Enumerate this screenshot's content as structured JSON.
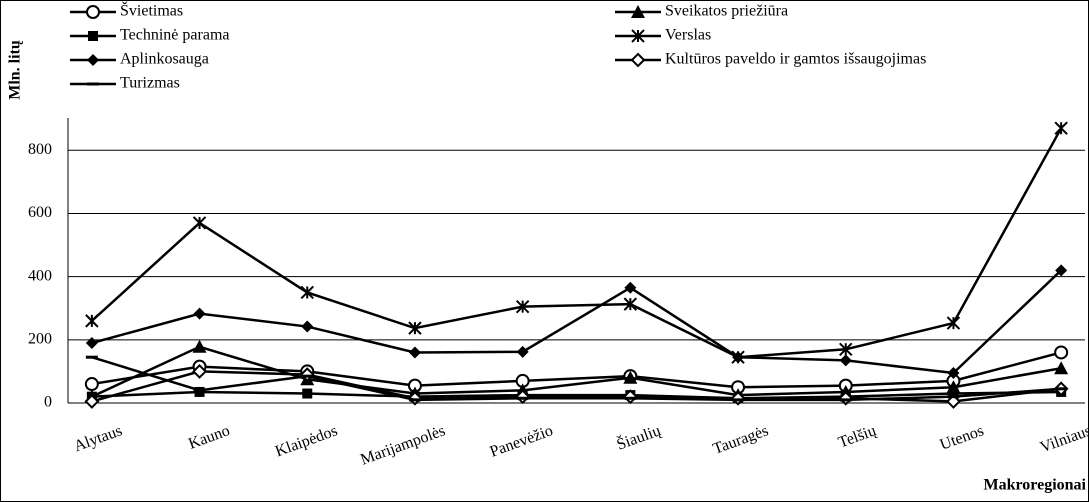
{
  "chart_data": {
    "type": "line",
    "y_label": "Mln. litų",
    "x_label": "Makroregionai",
    "categories": [
      "Alytaus",
      "Kauno",
      "Klaipėdos",
      "Marijampolės",
      "Panevėžio",
      "Šiaulių",
      "Tauragės",
      "Telšių",
      "Utenos",
      "Vilniaus"
    ],
    "series": [
      {
        "name": "Švietimas",
        "color": "#000000",
        "marker": "circle-open",
        "values": [
          60,
          115,
          100,
          55,
          70,
          85,
          50,
          55,
          70,
          160
        ]
      },
      {
        "name": "Sveikatos priežiūra",
        "color": "#000000",
        "marker": "triangle",
        "values": [
          20,
          178,
          75,
          30,
          40,
          80,
          25,
          35,
          50,
          110
        ]
      },
      {
        "name": "Techninė parama",
        "color": "#000000",
        "marker": "square",
        "values": [
          20,
          35,
          30,
          20,
          25,
          25,
          15,
          20,
          30,
          35
        ]
      },
      {
        "name": "Verslas",
        "color": "#000000",
        "marker": "asterisk",
        "values": [
          260,
          570,
          350,
          237,
          305,
          313,
          145,
          170,
          253,
          870
        ]
      },
      {
        "name": "Aplinkosauga",
        "color": "#000000",
        "marker": "diamond",
        "values": [
          190,
          283,
          242,
          160,
          162,
          365,
          145,
          135,
          95,
          420
        ]
      },
      {
        "name": "Kultūros paveldo ir gamtos išsaugojimas",
        "color": "#000000",
        "marker": "diamond-open",
        "values": [
          5,
          100,
          90,
          15,
          20,
          20,
          15,
          15,
          5,
          45
        ]
      },
      {
        "name": "Turizmas",
        "color": "#000000",
        "marker": "dash",
        "values": [
          145,
          40,
          85,
          10,
          15,
          15,
          10,
          10,
          20,
          45
        ]
      }
    ],
    "ylim": [
      0,
      1260
    ],
    "yticks": [
      0,
      200,
      400,
      600,
      800
    ],
    "grid": true
  }
}
